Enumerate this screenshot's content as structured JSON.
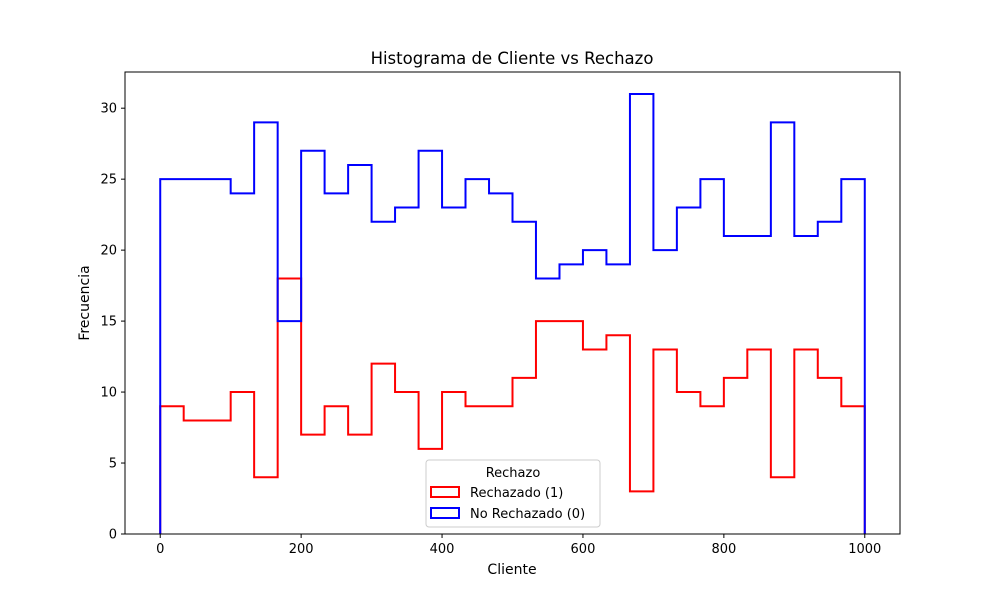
{
  "chart_data": {
    "type": "histogram",
    "title": "Histograma de Cliente vs Rechazo",
    "xlabel": "Cliente",
    "ylabel": "Frecuencia",
    "xlim": [
      -50,
      1050
    ],
    "ylim": [
      0,
      32.55
    ],
    "xticks": [
      0,
      200,
      400,
      600,
      800,
      1000
    ],
    "yticks": [
      0,
      5,
      10,
      15,
      20,
      25,
      30
    ],
    "grid": false,
    "bin_edges": [
      0,
      33.3,
      66.7,
      100,
      133.3,
      166.7,
      200,
      233.3,
      266.7,
      300,
      333.3,
      366.7,
      400,
      433.3,
      466.7,
      500,
      533.3,
      566.7,
      600,
      633.3,
      666.7,
      700,
      733.3,
      766.7,
      800,
      833.3,
      866.7,
      900,
      933.3,
      966.7,
      1000
    ],
    "legend": {
      "title": "Rechazo",
      "position": "lower center"
    },
    "series": [
      {
        "name": "Rechazado (1)",
        "color": "#ff0000",
        "counts": [
          9,
          8,
          8,
          10,
          4,
          18,
          7,
          9,
          7,
          12,
          10,
          6,
          10,
          9,
          9,
          11,
          15,
          15,
          13,
          14,
          3,
          13,
          10,
          9,
          11,
          13,
          4,
          13,
          11,
          9
        ]
      },
      {
        "name": "No Rechazado (0)",
        "color": "#0000ff",
        "counts": [
          25,
          25,
          25,
          24,
          29,
          15,
          27,
          24,
          26,
          22,
          23,
          27,
          23,
          25,
          24,
          22,
          18,
          19,
          20,
          19,
          31,
          20,
          23,
          25,
          21,
          21,
          29,
          21,
          22,
          25
        ]
      }
    ]
  }
}
